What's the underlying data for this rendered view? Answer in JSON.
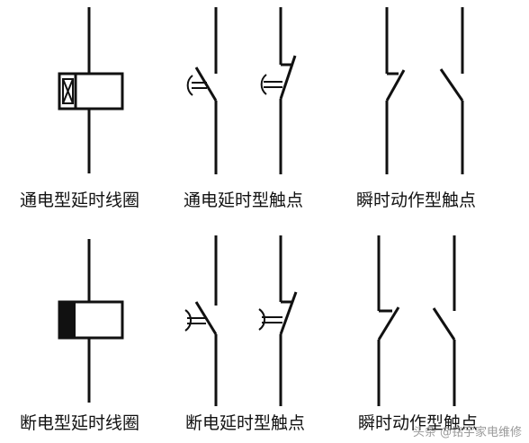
{
  "labels": {
    "coil_on": "通电型延时线圈",
    "contact_on": "通电延时型触点",
    "instant_top": "瞬时动作型触点",
    "coil_off": "断电型延时线圈",
    "contact_off": "断电延时型触点",
    "instant_bottom": "瞬时动作型触点"
  },
  "watermark": "头条 @铭宇家电维修",
  "colors": {
    "stroke": "#111111",
    "background": "#ffffff"
  }
}
